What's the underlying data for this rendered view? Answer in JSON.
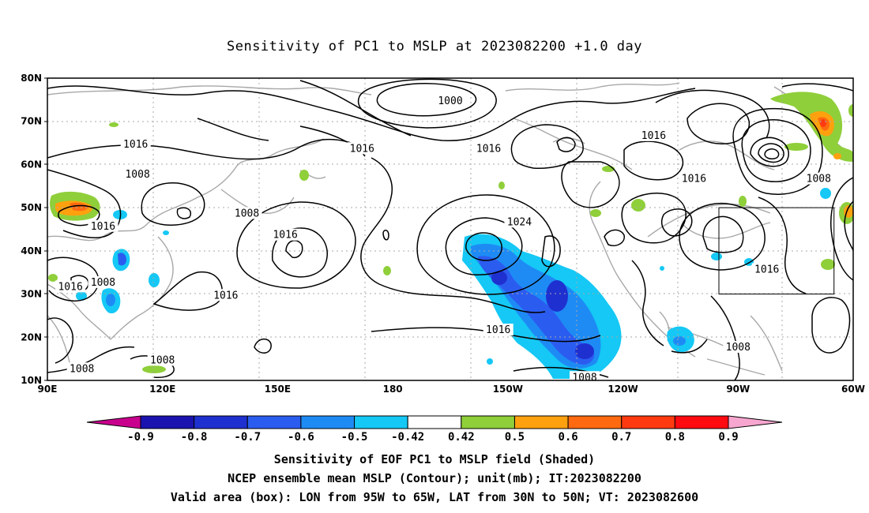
{
  "title": "Sensitivity of PC1 to MSLP at 2023082200 +1.0 day",
  "map": {
    "lat_labels": [
      "80N",
      "70N",
      "60N",
      "50N",
      "40N",
      "30N",
      "20N",
      "10N"
    ],
    "lon_labels": [
      "90E",
      "120E",
      "150E",
      "180",
      "150W",
      "120W",
      "90W",
      "60W"
    ],
    "lon_range": [
      90,
      300
    ],
    "lat_range": [
      10,
      80
    ],
    "contour_labels": [
      {
        "text": "1000",
        "lon": 195,
        "lat": 74.5
      },
      {
        "text": "1016",
        "lon": 248,
        "lat": 66.5
      },
      {
        "text": "1016",
        "lon": 113,
        "lat": 64.5
      },
      {
        "text": "1016",
        "lon": 172,
        "lat": 63.5
      },
      {
        "text": "1016",
        "lon": 205,
        "lat": 63.5
      },
      {
        "text": "1008",
        "lon": 113.5,
        "lat": 57.5
      },
      {
        "text": "1016",
        "lon": 258.5,
        "lat": 56.5
      },
      {
        "text": "1008",
        "lon": 291,
        "lat": 56.5
      },
      {
        "text": "1008",
        "lon": 142,
        "lat": 48.5
      },
      {
        "text": "1024",
        "lon": 213,
        "lat": 46.5
      },
      {
        "text": "1016",
        "lon": 104.5,
        "lat": 45.5
      },
      {
        "text": "1016",
        "lon": 152,
        "lat": 43.5
      },
      {
        "text": "1016",
        "lon": 96,
        "lat": 31.5
      },
      {
        "text": "1008",
        "lon": 104.5,
        "lat": 32.5
      },
      {
        "text": "1016",
        "lon": 136.5,
        "lat": 29.5
      },
      {
        "text": "1016",
        "lon": 277.5,
        "lat": 35.5
      },
      {
        "text": "1016",
        "lon": 207.5,
        "lat": 21.5
      },
      {
        "text": "1008",
        "lon": 270,
        "lat": 17.5
      },
      {
        "text": "1008",
        "lon": 120,
        "lat": 14.5
      },
      {
        "text": "1008",
        "lon": 99,
        "lat": 12.5
      },
      {
        "text": "1008",
        "lon": 230,
        "lat": 10.5
      }
    ],
    "valid_box": {
      "lon_min": 265,
      "lon_max": 295,
      "lat_min": 30,
      "lat_max": 50
    }
  },
  "colorbar": {
    "colors": [
      "#c9008d",
      "#1a13b0",
      "#1f30d0",
      "#2b5cf0",
      "#1e8bf5",
      "#15c8f5",
      "#ffffff",
      "#8fcf3a",
      "#ffa10f",
      "#ff6a10",
      "#ff3a10",
      "#ff0a10",
      "#f7a6cf"
    ],
    "labels": [
      "-0.9",
      "-0.8",
      "-0.7",
      "-0.6",
      "-0.5",
      "-0.42",
      "0.42",
      "0.5",
      "0.6",
      "0.7",
      "0.8",
      "0.9"
    ]
  },
  "captions": {
    "line1": "Sensitivity of EOF PC1 to MSLP field (Shaded)",
    "line2": "NCEP ensemble mean MSLP (Contour); unit(mb); IT:2023082200",
    "line3": "Valid area (box): LON from 95W to 65W, LAT from 30N to 50N; VT: 2023082600"
  }
}
